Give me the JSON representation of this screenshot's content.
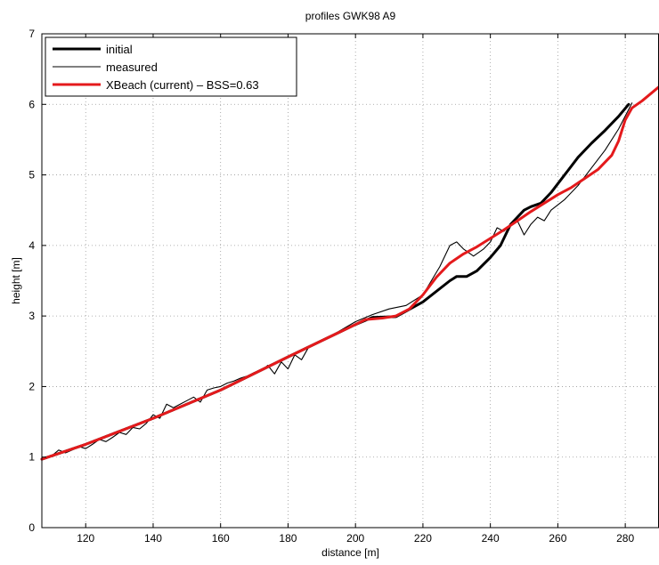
{
  "chart_data": {
    "type": "line",
    "title": "profiles GWK98 A9",
    "xlabel": "distance [m]",
    "ylabel": "height [m]",
    "xlim": [
      107,
      290
    ],
    "ylim": [
      0,
      7
    ],
    "xticks": [
      120,
      140,
      160,
      180,
      200,
      220,
      240,
      260,
      280
    ],
    "yticks": [
      0,
      1,
      2,
      3,
      4,
      5,
      6,
      7
    ],
    "grid": true,
    "legend_position": "top-left",
    "series": [
      {
        "name": "initial",
        "color": "#000000",
        "style": "thick",
        "x": [
          107,
          120,
          140,
          160,
          180,
          190,
          200,
          205,
          212,
          220,
          228,
          230,
          233,
          236,
          240,
          243,
          246,
          250,
          252,
          255,
          258,
          262,
          266,
          270,
          274,
          278,
          281
        ],
        "y": [
          0.97,
          1.18,
          1.55,
          1.95,
          2.42,
          2.65,
          2.88,
          2.98,
          2.99,
          3.2,
          3.5,
          3.56,
          3.56,
          3.64,
          3.83,
          4.0,
          4.3,
          4.5,
          4.55,
          4.6,
          4.75,
          5.0,
          5.25,
          5.45,
          5.63,
          5.83,
          6.0
        ]
      },
      {
        "name": "measured",
        "color": "#000000",
        "style": "thin",
        "x": [
          107,
          110,
          112,
          114,
          116,
          118,
          120,
          122,
          124,
          126,
          128,
          130,
          132,
          134,
          136,
          138,
          140,
          142,
          144,
          146,
          148,
          150,
          152,
          154,
          156,
          158,
          160,
          162,
          164,
          166,
          168,
          170,
          172,
          174,
          176,
          178,
          180,
          182,
          184,
          186,
          190,
          195,
          200,
          205,
          210,
          215,
          220,
          225,
          228,
          230,
          232,
          235,
          238,
          240,
          242,
          244,
          246,
          248,
          250,
          252,
          254,
          256,
          258,
          262,
          266,
          270,
          274,
          278,
          282
        ],
        "y": [
          0.97,
          1.02,
          1.1,
          1.06,
          1.1,
          1.15,
          1.12,
          1.18,
          1.25,
          1.22,
          1.28,
          1.35,
          1.32,
          1.42,
          1.4,
          1.48,
          1.6,
          1.55,
          1.75,
          1.7,
          1.75,
          1.8,
          1.85,
          1.78,
          1.95,
          1.98,
          2.0,
          2.05,
          2.08,
          2.12,
          2.15,
          2.2,
          2.22,
          2.3,
          2.18,
          2.35,
          2.25,
          2.45,
          2.38,
          2.55,
          2.65,
          2.78,
          2.92,
          3.02,
          3.1,
          3.15,
          3.3,
          3.7,
          4.0,
          4.05,
          3.95,
          3.85,
          3.95,
          4.05,
          4.25,
          4.2,
          4.3,
          4.35,
          4.15,
          4.3,
          4.4,
          4.35,
          4.5,
          4.65,
          4.85,
          5.1,
          5.35,
          5.65,
          6.02
        ]
      },
      {
        "name": "XBeach (current) – BSS=0.63",
        "color": "#e41a1c",
        "style": "thick",
        "x": [
          107,
          120,
          140,
          160,
          180,
          190,
          200,
          203,
          208,
          212,
          216,
          220,
          224,
          228,
          232,
          236,
          240,
          244,
          248,
          252,
          256,
          260,
          264,
          268,
          272,
          276,
          278,
          280,
          282,
          285,
          290
        ],
        "y": [
          0.97,
          1.18,
          1.55,
          1.95,
          2.42,
          2.65,
          2.88,
          2.95,
          2.97,
          3.0,
          3.1,
          3.3,
          3.55,
          3.75,
          3.88,
          3.98,
          4.1,
          4.22,
          4.35,
          4.48,
          4.6,
          4.72,
          4.82,
          4.95,
          5.08,
          5.28,
          5.48,
          5.78,
          5.95,
          6.05,
          6.25
        ]
      }
    ]
  }
}
